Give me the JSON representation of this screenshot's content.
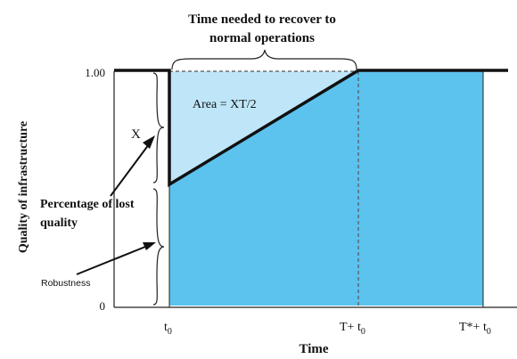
{
  "title_line1": "Time needed to recover to",
  "title_line2": "normal operations",
  "y_axis_label": "Quality of infrastructure",
  "x_axis_label": "Time",
  "y_tick_top": "1.00",
  "y_tick_bottom": "0",
  "x_ticks": {
    "t0": {
      "main": "t",
      "sub": "0"
    },
    "t_plus_t0": {
      "main": "T+ t",
      "sub": "0"
    },
    "tstar_plus_t0": {
      "main": "T*+ t",
      "sub": "0"
    }
  },
  "area_label": "Area = XT/2",
  "x_label": "X",
  "lost_quality_line1": "Percentage of lost",
  "lost_quality_line2": "quality",
  "robustness_label": "Robustness",
  "colors": {
    "recovered_fill": "#5cc3ef",
    "lost_area_fill": "#bfe6f8",
    "curve": "#111111",
    "dashed": "#555555"
  }
}
